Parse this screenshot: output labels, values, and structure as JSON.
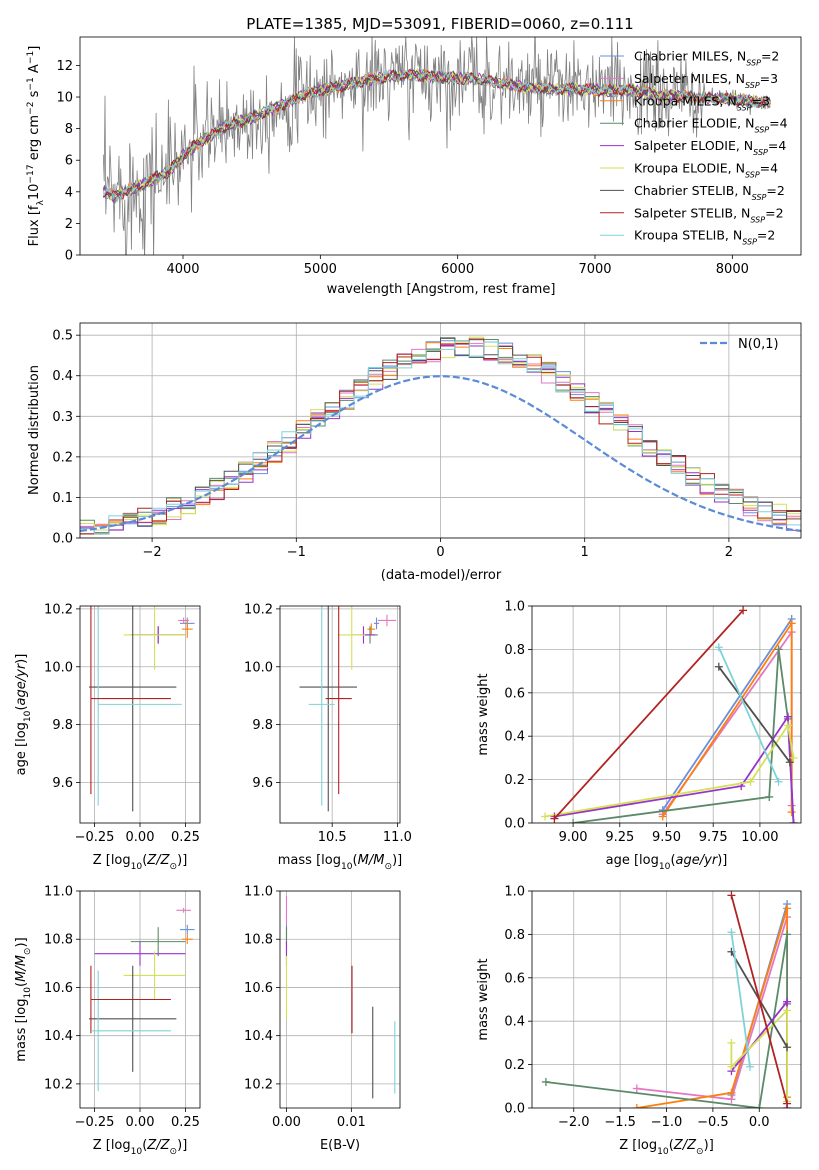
{
  "figure": {
    "title": "PLATE=1385, MJD=53091, FIBERID=0060, z=0.111"
  },
  "colors": {
    "Chabrier MILES": "#6a8fd8",
    "Salpeter MILES": "#e377c2",
    "Kroupa MILES": "#ff7f0e",
    "Chabrier ELODIE": "#5b8a68",
    "Salpeter ELODIE": "#9932cc",
    "Kroupa ELODIE": "#d4e157",
    "Chabrier STELIB": "#505050",
    "Salpeter STELIB": "#b22222",
    "Kroupa STELIB": "#7fd3d8",
    "data": "#808080"
  },
  "legend_spectrum": [
    {
      "name": "Chabrier MILES",
      "nssp": "2"
    },
    {
      "name": "Salpeter MILES",
      "nssp": "3"
    },
    {
      "name": "Kroupa MILES",
      "nssp": "3"
    },
    {
      "name": "Chabrier ELODIE",
      "nssp": "4"
    },
    {
      "name": "Salpeter ELODIE",
      "nssp": "4"
    },
    {
      "name": "Kroupa ELODIE",
      "nssp": "4"
    },
    {
      "name": "Chabrier STELIB",
      "nssp": "2"
    },
    {
      "name": "Salpeter STELIB",
      "nssp": "2"
    },
    {
      "name": "Kroupa STELIB",
      "nssp": "2"
    }
  ],
  "chart_data": [
    {
      "id": "spectrum",
      "type": "line",
      "xlabel": "wavelength [Angstrom, rest frame]",
      "ylabel": "Flux [f_λ 10^-17 erg cm^-2 s^-1 A^-1]",
      "xlim": [
        3250,
        8500
      ],
      "ylim": [
        0,
        13.8
      ],
      "xticks": [
        4000,
        5000,
        6000,
        7000,
        8000
      ],
      "yticks": [
        0,
        2,
        4,
        6,
        8,
        10,
        12
      ],
      "legend": "top-right",
      "continuum": {
        "x": [
          3420,
          3500,
          3600,
          3700,
          3800,
          3900,
          4000,
          4100,
          4200,
          4300,
          4400,
          4500,
          4700,
          4900,
          5100,
          5300,
          5500,
          5700,
          5900,
          6100,
          6300,
          6500,
          6700,
          6900,
          7100,
          7300,
          7500,
          7700,
          7900,
          8100,
          8280
        ],
        "y": [
          4.0,
          3.7,
          4.1,
          4.4,
          4.9,
          5.3,
          6.3,
          7.0,
          7.5,
          8.1,
          8.4,
          8.7,
          9.4,
          10.2,
          10.6,
          11.0,
          11.3,
          11.4,
          11.2,
          11.2,
          10.9,
          10.6,
          10.5,
          10.5,
          10.4,
          10.4,
          10.1,
          10.0,
          9.9,
          9.8,
          9.6
        ]
      },
      "noise_range": [
        3420,
        7800
      ]
    },
    {
      "id": "residuals",
      "type": "histogram",
      "xlabel": "(data-model)/error",
      "ylabel": "Normed distribution",
      "xlim": [
        -2.5,
        2.5
      ],
      "ylim": [
        0,
        0.53
      ],
      "xticks": [
        -2,
        -1,
        0,
        1,
        2
      ],
      "yticks": [
        0.0,
        0.1,
        0.2,
        0.3,
        0.4,
        0.5
      ],
      "bin_width": 0.1,
      "legend_label": "N(0,1)",
      "legend": "top-right"
    },
    {
      "id": "age-vs-Z",
      "type": "errorbar",
      "xlabel": "Z [log10(Z/Z☉)]",
      "ylabel": "age  [log10(age/yr)]",
      "xlim": [
        -0.33,
        0.33
      ],
      "ylim": [
        9.46,
        10.21
      ],
      "xticks": [
        -0.25,
        0.0,
        0.25
      ],
      "yticks": [
        9.6,
        9.8,
        10.0,
        10.2
      ],
      "points": [
        {
          "model": "Chabrier MILES",
          "x": 0.26,
          "xerr": 0.04,
          "y": 10.15,
          "yerr": 0.02
        },
        {
          "model": "Salpeter MILES",
          "x": 0.24,
          "xerr": 0.03,
          "y": 10.16,
          "yerr": 0.01
        },
        {
          "model": "Kroupa MILES",
          "x": 0.26,
          "xerr": 0.03,
          "y": 10.13,
          "yerr": 0.03
        },
        {
          "model": "Chabrier ELODIE",
          "x": 0.1,
          "xerr": 0.15,
          "y": 10.11,
          "yerr": 0.03
        },
        {
          "model": "Salpeter ELODIE",
          "x": 0.1,
          "xerr": 0.15,
          "y": 10.11,
          "yerr": 0.03
        },
        {
          "model": "Kroupa ELODIE",
          "x": 0.08,
          "xerr": 0.17,
          "y": 10.11,
          "yerr": 0.12
        },
        {
          "model": "Chabrier STELIB",
          "x": -0.04,
          "xerr": 0.24,
          "y": 9.93,
          "yerr": 0.43
        },
        {
          "model": "Salpeter STELIB",
          "x": -0.27,
          "xerr": 0.0,
          "y": 9.89,
          "yerr": 0.33
        },
        {
          "model": "Kroupa STELIB",
          "x": -0.23,
          "xerr": 0.0,
          "y": 9.87,
          "yerr": 0.35
        },
        {
          "model": "Salpeter STELIB",
          "x": -0.05,
          "xerr": 0.22,
          "y": 9.89,
          "yerr": 0.0
        },
        {
          "model": "Kroupa STELIB",
          "x": 0.0,
          "xerr": 0.23,
          "y": 9.87,
          "yerr": 0.0
        }
      ]
    },
    {
      "id": "age-vs-mass",
      "type": "errorbar",
      "xlabel": "mass [log10(M/M☉)]",
      "ylabel": "",
      "xlim": [
        10.1,
        11.02
      ],
      "ylim": [
        9.46,
        10.21
      ],
      "xticks": [
        10.5,
        11.0
      ],
      "yticks": [
        9.6,
        9.8,
        10.0,
        10.2
      ],
      "points": [
        {
          "model": "Chabrier MILES",
          "x": 10.84,
          "xerr": 0.02,
          "y": 10.15,
          "yerr": 0.02
        },
        {
          "model": "Salpeter MILES",
          "x": 10.92,
          "xerr": 0.07,
          "y": 10.16,
          "yerr": 0.02
        },
        {
          "model": "Kroupa MILES",
          "x": 10.8,
          "xerr": 0.03,
          "y": 10.13,
          "yerr": 0.02
        },
        {
          "model": "Chabrier ELODIE",
          "x": 10.79,
          "xerr": 0.06,
          "y": 10.11,
          "yerr": 0.03
        },
        {
          "model": "Salpeter ELODIE",
          "x": 10.74,
          "xerr": 0.09,
          "y": 10.11,
          "yerr": 0.03
        },
        {
          "model": "Kroupa ELODIE",
          "x": 10.65,
          "xerr": 0.1,
          "y": 10.11,
          "yerr": 0.12
        },
        {
          "model": "Chabrier STELIB",
          "x": 10.47,
          "xerr": 0.22,
          "y": 9.93,
          "yerr": 0.43
        },
        {
          "model": "Salpeter STELIB",
          "x": 10.55,
          "xerr": 0.1,
          "y": 9.89,
          "yerr": 0.33
        },
        {
          "model": "Kroupa STELIB",
          "x": 10.42,
          "xerr": 0.1,
          "y": 9.87,
          "yerr": 0.35
        }
      ]
    },
    {
      "id": "weight-vs-age",
      "type": "line",
      "xlabel": "age  [log10(age/yr)]",
      "ylabel": "mass weight",
      "xlim": [
        8.78,
        10.22
      ],
      "ylim": [
        0,
        1.0
      ],
      "xticks": [
        9.0,
        9.25,
        9.5,
        9.75,
        10.0
      ],
      "yticks": [
        0.0,
        0.2,
        0.4,
        0.6,
        0.8,
        1.0
      ],
      "series": [
        {
          "model": "Chabrier MILES",
          "x": [
            9.48,
            10.17
          ],
          "y": [
            0.06,
            0.94
          ]
        },
        {
          "model": "Salpeter MILES",
          "x": [
            9.48,
            10.17,
            10.17
          ],
          "y": [
            0.04,
            0.88,
            0.08
          ]
        },
        {
          "model": "Kroupa MILES",
          "x": [
            9.48,
            10.17,
            10.17
          ],
          "y": [
            0.03,
            0.92,
            0.05
          ]
        },
        {
          "model": "Chabrier ELODIE",
          "x": [
            9.0,
            10.05,
            10.1,
            10.15,
            10.18
          ],
          "y": [
            0.0,
            0.12,
            0.8,
            0.48,
            0.0
          ]
        },
        {
          "model": "Salpeter ELODIE",
          "x": [
            8.9,
            9.9,
            10.15,
            10.18
          ],
          "y": [
            0.03,
            0.17,
            0.49,
            0.0
          ]
        },
        {
          "model": "Kroupa ELODIE",
          "x": [
            8.85,
            9.95,
            10.15,
            10.18
          ],
          "y": [
            0.03,
            0.19,
            0.45,
            0.3
          ]
        },
        {
          "model": "Chabrier STELIB",
          "x": [
            9.78,
            10.16
          ],
          "y": [
            0.72,
            0.28
          ]
        },
        {
          "model": "Salpeter STELIB",
          "x": [
            8.9,
            9.91
          ],
          "y": [
            0.02,
            0.98
          ]
        },
        {
          "model": "Kroupa STELIB",
          "x": [
            9.78,
            10.1
          ],
          "y": [
            0.81,
            0.19
          ]
        }
      ]
    },
    {
      "id": "mass-vs-Z",
      "type": "errorbar",
      "xlabel": "Z [log10(Z/Z☉)]",
      "ylabel": "mass [log10(M/M☉)]",
      "xlim": [
        -0.33,
        0.33
      ],
      "ylim": [
        10.1,
        11.0
      ],
      "xticks": [
        -0.25,
        0.0,
        0.25
      ],
      "yticks": [
        10.2,
        10.4,
        10.6,
        10.8,
        11.0
      ],
      "points": [
        {
          "model": "Chabrier MILES",
          "x": 0.26,
          "xerr": 0.04,
          "y": 10.84,
          "yerr": 0.02
        },
        {
          "model": "Salpeter MILES",
          "x": 0.24,
          "xerr": 0.04,
          "y": 10.92,
          "yerr": 0.01
        },
        {
          "model": "Kroupa MILES",
          "x": 0.26,
          "xerr": 0.03,
          "y": 10.8,
          "yerr": 0.02
        },
        {
          "model": "Chabrier ELODIE",
          "x": 0.1,
          "xerr": 0.15,
          "y": 10.79,
          "yerr": 0.06
        },
        {
          "model": "Salpeter ELODIE",
          "x": 0.0,
          "xerr": 0.25,
          "y": 10.74,
          "yerr": 0.05
        },
        {
          "model": "Kroupa ELODIE",
          "x": 0.08,
          "xerr": 0.17,
          "y": 10.65,
          "yerr": 0.1
        },
        {
          "model": "Chabrier STELIB",
          "x": -0.04,
          "xerr": 0.24,
          "y": 10.47,
          "yerr": 0.22
        },
        {
          "model": "Salpeter STELIB",
          "x": -0.27,
          "xerr": 0.0,
          "y": 10.55,
          "yerr": 0.14
        },
        {
          "model": "Kroupa STELIB",
          "x": -0.23,
          "xerr": 0.0,
          "y": 10.42,
          "yerr": 0.25
        },
        {
          "model": "Salpeter STELIB",
          "x": -0.05,
          "xerr": 0.22,
          "y": 10.55,
          "yerr": 0.0
        },
        {
          "model": "Kroupa STELIB",
          "x": -0.05,
          "xerr": 0.22,
          "y": 10.42,
          "yerr": 0.0
        }
      ]
    },
    {
      "id": "mass-vs-EBV",
      "type": "errorbar",
      "xlabel": "E(B-V)",
      "ylabel": "",
      "xlim": [
        -0.001,
        0.0175
      ],
      "ylim": [
        10.1,
        11.0
      ],
      "xticks": [
        0.0,
        0.01
      ],
      "yticks": [
        10.2,
        10.4,
        10.6,
        10.8,
        11.0
      ],
      "points": [
        {
          "model": "Chabrier MILES",
          "x": 0.0,
          "y": 10.84,
          "yerr": 0.02
        },
        {
          "model": "Salpeter MILES",
          "x": 0.0,
          "y": 10.92,
          "yerr": 0.06
        },
        {
          "model": "Kroupa MILES",
          "x": 0.0,
          "y": 10.8,
          "yerr": 0.03
        },
        {
          "model": "Chabrier ELODIE",
          "x": 0.0,
          "y": 10.79,
          "yerr": 0.06
        },
        {
          "model": "Salpeter ELODIE",
          "x": 0.0,
          "y": 10.74,
          "yerr": 0.05
        },
        {
          "model": "Kroupa ELODIE",
          "x": 0.0,
          "y": 10.6,
          "yerr": 0.13
        },
        {
          "model": "Chabrier STELIB",
          "x": 0.0133,
          "y": 10.33,
          "yerr": 0.19
        },
        {
          "model": "Salpeter STELIB",
          "x": 0.0101,
          "y": 10.55,
          "yerr": 0.14
        },
        {
          "model": "Kroupa STELIB",
          "x": 0.0167,
          "y": 10.31,
          "yerr": 0.15
        }
      ]
    },
    {
      "id": "weight-vs-Z",
      "type": "line",
      "xlabel": "Z [log10(Z/Z☉)]",
      "ylabel": "mass weight",
      "xlim": [
        -2.45,
        0.45
      ],
      "ylim": [
        0,
        1.0
      ],
      "xticks": [
        -2.0,
        -1.5,
        -1.0,
        -0.5,
        0.0
      ],
      "yticks": [
        0.0,
        0.2,
        0.4,
        0.6,
        0.8,
        1.0
      ],
      "series": [
        {
          "model": "Chabrier MILES",
          "x": [
            -0.3,
            0.3
          ],
          "y": [
            0.06,
            0.94
          ]
        },
        {
          "model": "Salpeter MILES",
          "x": [
            -1.32,
            -0.3,
            0.3
          ],
          "y": [
            0.09,
            0.04,
            0.88
          ]
        },
        {
          "model": "Kroupa MILES",
          "x": [
            -1.32,
            -0.3,
            0.3,
            0.3
          ],
          "y": [
            0.0,
            0.07,
            0.92,
            0.05
          ]
        },
        {
          "model": "Chabrier ELODIE",
          "x": [
            -2.3,
            0.0,
            0.3,
            0.3
          ],
          "y": [
            0.12,
            0.0,
            0.8,
            0.48
          ]
        },
        {
          "model": "Salpeter ELODIE",
          "x": [
            -0.3,
            0.3,
            0.3
          ],
          "y": [
            0.17,
            0.49,
            0.0
          ]
        },
        {
          "model": "Kroupa ELODIE",
          "x": [
            -0.3,
            -0.3,
            0.3,
            0.3
          ],
          "y": [
            0.3,
            0.19,
            0.45,
            0.03
          ]
        },
        {
          "model": "Chabrier STELIB",
          "x": [
            -0.3,
            0.3
          ],
          "y": [
            0.72,
            0.28
          ]
        },
        {
          "model": "Salpeter STELIB",
          "x": [
            -0.3,
            0.3
          ],
          "y": [
            0.98,
            0.02
          ]
        },
        {
          "model": "Kroupa STELIB",
          "x": [
            -0.3,
            -0.1
          ],
          "y": [
            0.81,
            0.19
          ]
        }
      ]
    }
  ]
}
